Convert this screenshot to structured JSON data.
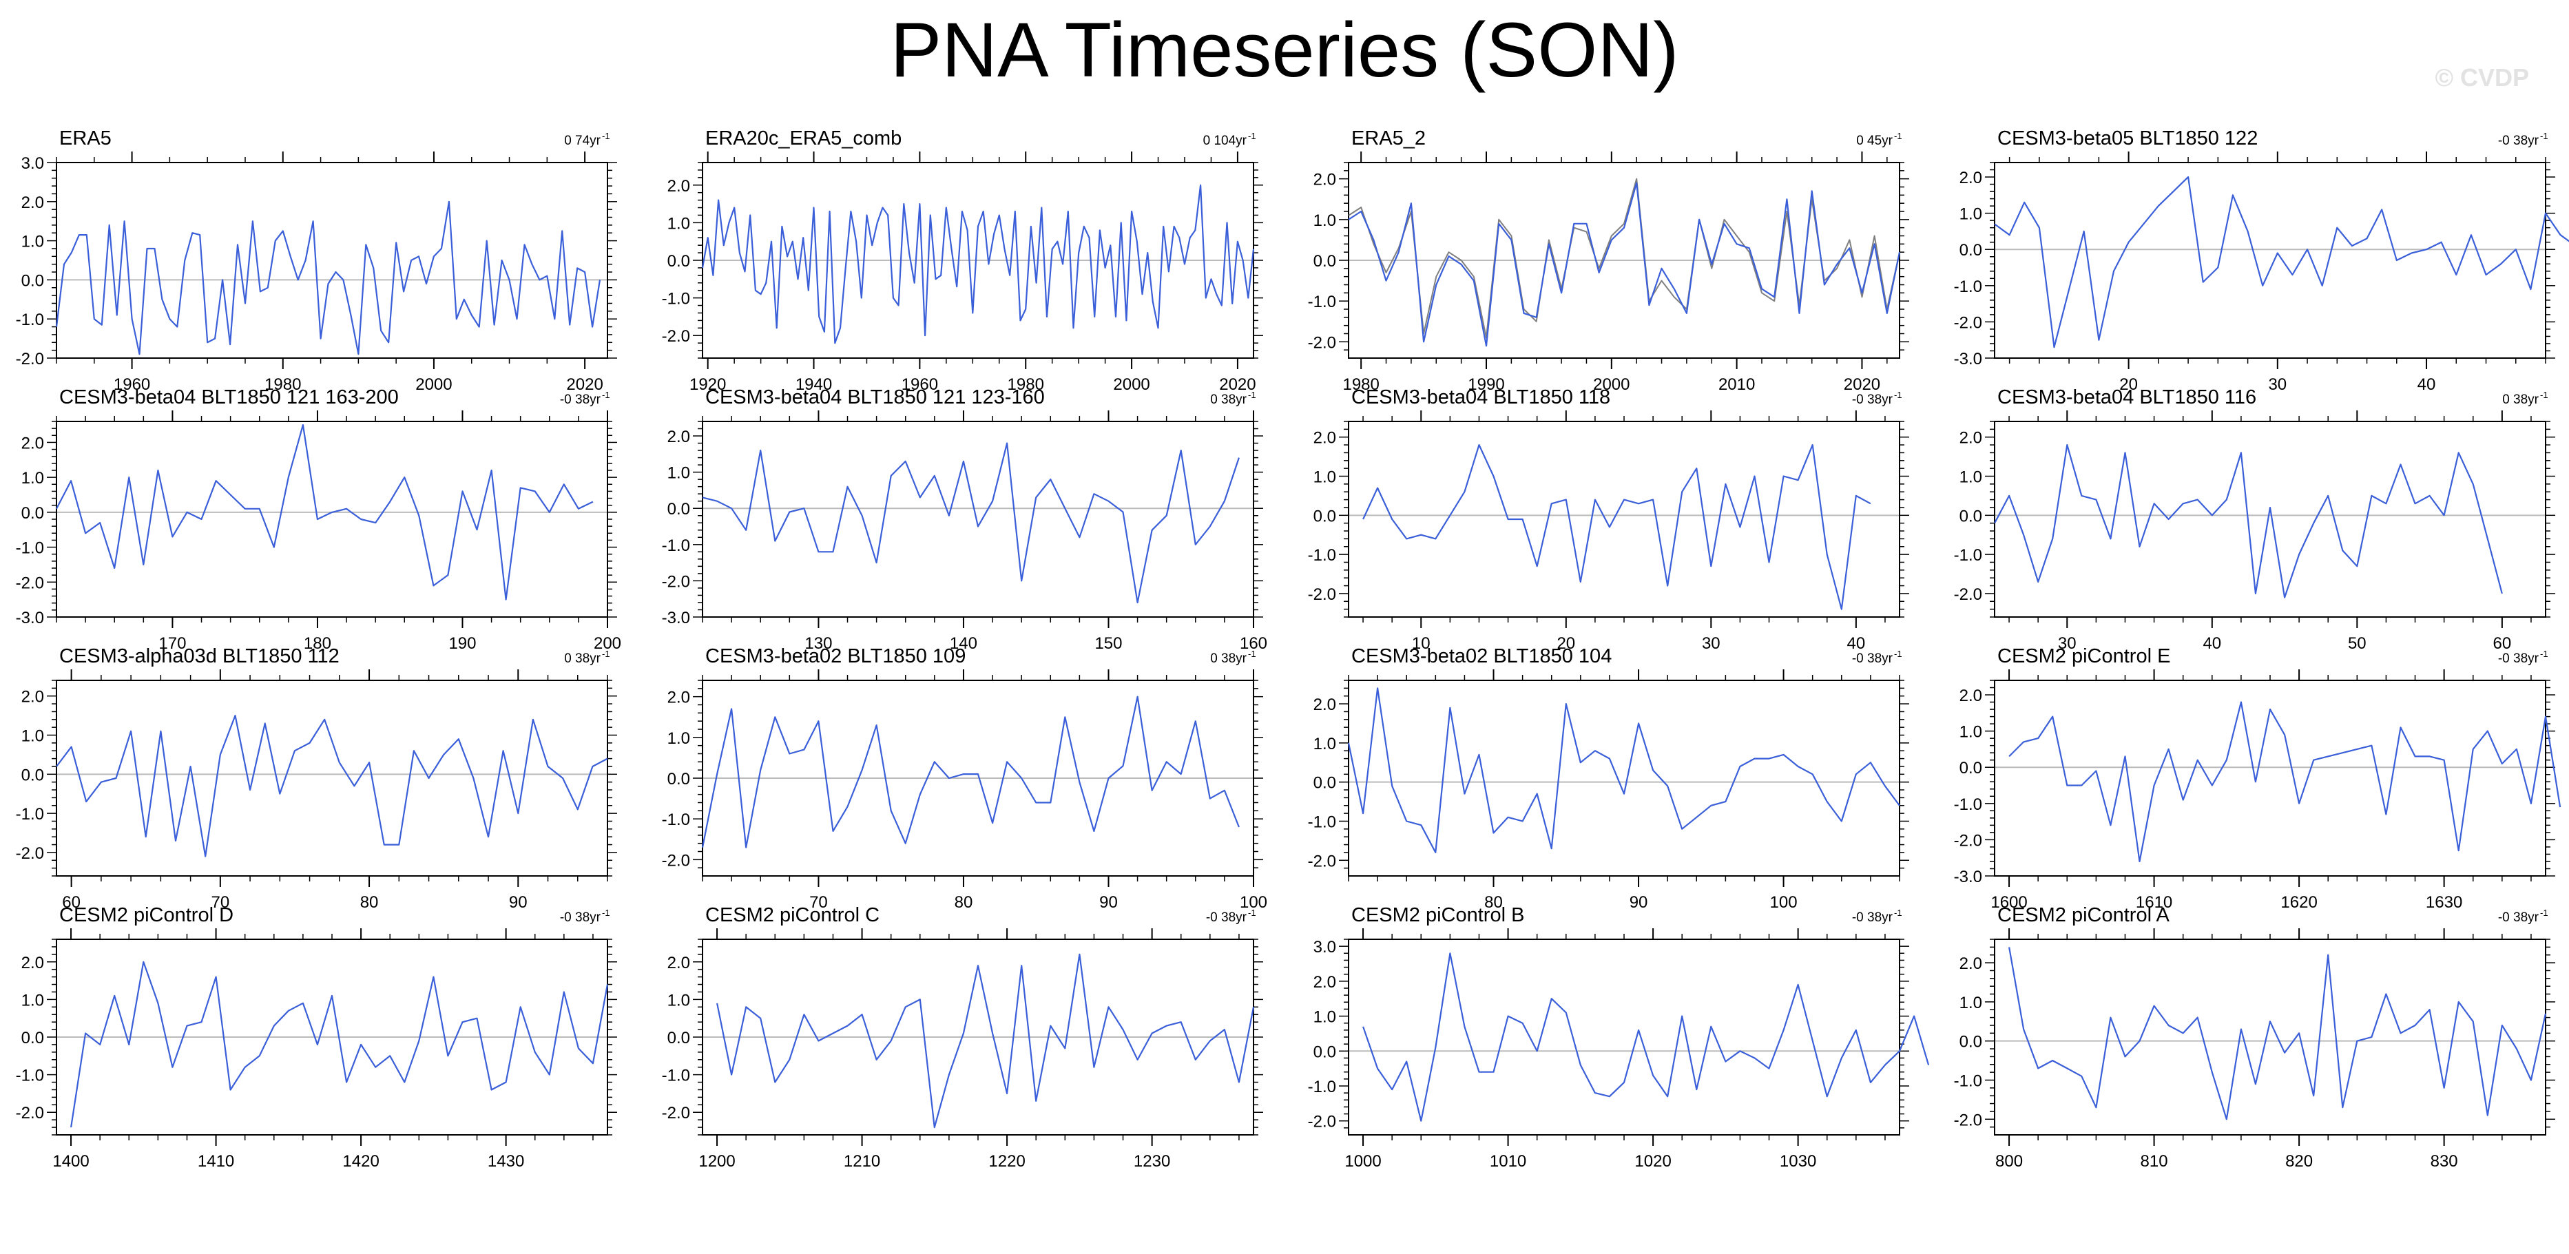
{
  "title": "PNA Timeseries (SON)",
  "watermark": "© CVDP",
  "colors": {
    "model": "#3a5fd9",
    "obs_overlay": "#7f7f7f",
    "axis": "#000000",
    "zero_line": "#bbbbbb"
  },
  "chart_data": [
    {
      "type": "line",
      "title": "ERA5",
      "trend": "0 74yr",
      "xlim": [
        1950,
        2023
      ],
      "ylim": [
        -2,
        3
      ],
      "xticks": [
        1960,
        1980,
        2000,
        2020
      ],
      "yticks": [
        "-2.0",
        "-1.0",
        "0.0",
        "1.0",
        "2.0",
        "3.0"
      ],
      "x_start": 1950,
      "values": [
        -1.2,
        0.4,
        0.7,
        1.15,
        1.15,
        -1.0,
        -1.15,
        1.4,
        -0.9,
        1.5,
        -1.0,
        -1.9,
        0.8,
        0.8,
        -0.5,
        -1.0,
        -1.2,
        0.5,
        1.2,
        1.15,
        -1.6,
        -1.5,
        0.0,
        -1.65,
        0.9,
        -0.6,
        1.5,
        -0.3,
        -0.2,
        1.0,
        1.25,
        0.6,
        0.0,
        0.5,
        1.5,
        -1.5,
        -0.1,
        0.2,
        0.0,
        -0.9,
        -1.9,
        0.9,
        0.3,
        -1.3,
        -1.6,
        0.95,
        -0.3,
        0.5,
        0.6,
        -0.1,
        0.6,
        0.8,
        2.0,
        -1.0,
        -0.5,
        -0.9,
        -1.2,
        1.0,
        -1.15,
        0.5,
        0.0,
        -1.0,
        0.9,
        0.4,
        0.0,
        0.1,
        -1.0,
        1.25,
        -1.15,
        0.3,
        0.2,
        -1.2,
        0.0
      ]
    },
    {
      "type": "line",
      "title": "ERA20c_ERA5_comb",
      "trend": "0 104yr",
      "xlim": [
        1919,
        2023
      ],
      "ylim": [
        -2.6,
        2.6
      ],
      "xticks": [
        1920,
        1940,
        1960,
        1980,
        2000,
        2020
      ],
      "yticks": [
        "-2.0",
        "-1.0",
        "0.0",
        "1.0",
        "2.0"
      ],
      "x_start": 1919,
      "values": [
        -0.2,
        0.6,
        -0.4,
        1.6,
        0.4,
        1.0,
        1.4,
        0.2,
        -0.3,
        1.2,
        -0.8,
        -0.9,
        -0.6,
        0.5,
        -1.8,
        0.9,
        0.1,
        0.5,
        -0.5,
        0.6,
        -0.8,
        1.4,
        -1.5,
        -1.9,
        1.3,
        -2.2,
        -1.8,
        -0.2,
        1.3,
        0.5,
        -1.0,
        1.2,
        0.4,
        1.0,
        1.4,
        1.2,
        -1.0,
        -1.2,
        1.5,
        0.2,
        -0.6,
        1.5,
        -2.0,
        1.2,
        -0.5,
        -0.4,
        1.4,
        0.3,
        -0.7,
        1.3,
        0.8,
        -1.4,
        0.9,
        1.3,
        -0.1,
        0.7,
        1.2,
        0.3,
        -0.4,
        1.3,
        -1.6,
        -1.3,
        0.9,
        -0.6,
        1.4,
        -1.5,
        0.3,
        0.5,
        -0.1,
        1.3,
        -1.8,
        0.2,
        0.9,
        0.6,
        -1.5,
        0.8,
        -0.2,
        0.4,
        -1.5,
        1.0,
        -1.6,
        1.3,
        0.5,
        -0.9,
        0.2,
        -1.1,
        -1.8,
        0.9,
        -0.3,
        0.9,
        0.6,
        -0.1,
        0.6,
        0.8,
        2.0,
        -1.0,
        -0.5,
        -0.9,
        -1.2,
        1.0,
        -1.15,
        0.5,
        0.0,
        -1.0,
        0.3
      ]
    },
    {
      "type": "line",
      "title": "ERA5_2",
      "trend": "0 45yr",
      "xlim": [
        1979,
        2023
      ],
      "ylim": [
        -2.4,
        2.4
      ],
      "xticks": [
        1980,
        1990,
        2000,
        2010,
        2020
      ],
      "yticks": [
        "-2.0",
        "-1.0",
        "0.0",
        "1.0",
        "2.0"
      ],
      "x_start": 1979,
      "values": [
        1.0,
        1.2,
        0.5,
        -0.5,
        0.2,
        1.4,
        -2.0,
        -0.6,
        0.1,
        -0.1,
        -0.5,
        -2.1,
        0.9,
        0.5,
        -1.3,
        -1.4,
        0.4,
        -0.8,
        0.9,
        0.9,
        -0.3,
        0.5,
        0.8,
        1.9,
        -1.1,
        -0.2,
        -0.7,
        -1.3,
        1.0,
        -0.1,
        0.9,
        0.4,
        0.3,
        -0.7,
        -0.9,
        1.5,
        -1.3,
        1.7,
        -0.6,
        -0.1,
        0.3,
        -0.8,
        0.4,
        -1.3,
        0.2
      ],
      "overlay": [
        1.1,
        1.3,
        0.4,
        -0.3,
        0.3,
        1.2,
        -1.8,
        -0.4,
        0.2,
        0.0,
        -0.4,
        -1.9,
        1.0,
        0.6,
        -1.2,
        -1.5,
        0.5,
        -0.7,
        0.8,
        0.7,
        -0.2,
        0.6,
        0.9,
        2.0,
        -1.0,
        -0.5,
        -0.9,
        -1.2,
        1.0,
        -0.2,
        1.0,
        0.6,
        0.2,
        -0.8,
        -1.0,
        1.2,
        -1.1,
        1.5,
        -0.5,
        -0.2,
        0.5,
        -0.9,
        0.6,
        -1.2,
        0.2
      ]
    },
    {
      "type": "line",
      "title": "CESM3-beta05 BLT1850 122",
      "trend": "-0 38yr",
      "xlim": [
        11,
        48
      ],
      "ylim": [
        -3,
        2.4
      ],
      "xticks": [
        20,
        30,
        40
      ],
      "yticks": [
        "-3.0",
        "-2.0",
        "-1.0",
        "0.0",
        "1.0",
        "2.0"
      ],
      "x_start": 11,
      "values": [
        0.7,
        0.4,
        1.3,
        0.6,
        -2.7,
        -1.1,
        0.5,
        -2.5,
        -0.6,
        0.2,
        0.7,
        1.2,
        1.6,
        2.0,
        -0.9,
        -0.5,
        1.5,
        0.5,
        -1.0,
        -0.1,
        -0.7,
        0.0,
        -1.0,
        0.6,
        0.1,
        0.3,
        1.1,
        -0.3,
        -0.1,
        0.0,
        0.2,
        -0.7,
        0.4,
        -0.7,
        -0.4,
        0.0,
        -1.1,
        1.0,
        0.4,
        0.1
      ]
    },
    {
      "type": "line",
      "title": "CESM3-beta04 BLT1850 121 163-200",
      "trend": "-0 38yr",
      "xlim": [
        162,
        200
      ],
      "ylim": [
        -3,
        2.6
      ],
      "xticks": [
        170,
        180,
        190,
        200
      ],
      "yticks": [
        "-3.0",
        "-2.0",
        "-1.0",
        "0.0",
        "1.0",
        "2.0"
      ],
      "x_start": 162,
      "values": [
        0.1,
        0.9,
        -0.6,
        -0.3,
        -1.6,
        1.0,
        -1.5,
        1.2,
        -0.7,
        0.0,
        -0.2,
        0.9,
        0.5,
        0.1,
        0.1,
        -1.0,
        1.0,
        2.5,
        -0.2,
        0.0,
        0.1,
        -0.2,
        -0.3,
        0.3,
        1.0,
        -0.1,
        -2.1,
        -1.8,
        0.6,
        -0.5,
        1.2,
        -2.5,
        0.7,
        0.6,
        0.0,
        0.8,
        0.1,
        0.3
      ]
    },
    {
      "type": "line",
      "title": "CESM3-beta04 BLT1850 121 123-160",
      "trend": "0 38yr",
      "xlim": [
        122,
        160
      ],
      "ylim": [
        -3,
        2.4
      ],
      "xticks": [
        130,
        140,
        150,
        160
      ],
      "yticks": [
        "-3.0",
        "-2.0",
        "-1.0",
        "0.0",
        "1.0",
        "2.0"
      ],
      "x_start": 122,
      "values": [
        0.3,
        0.2,
        0.0,
        -0.6,
        1.6,
        -0.9,
        -0.1,
        0.0,
        -1.2,
        -1.2,
        0.6,
        -0.2,
        -1.5,
        0.9,
        1.3,
        0.3,
        0.9,
        -0.2,
        1.3,
        -0.5,
        0.2,
        1.8,
        -2.0,
        0.3,
        0.8,
        0.0,
        -0.8,
        0.4,
        0.2,
        -0.1,
        -2.6,
        -0.6,
        -0.2,
        1.6,
        -1.0,
        -0.5,
        0.2,
        1.4
      ]
    },
    {
      "type": "line",
      "title": "CESM3-beta04 BLT1850 118",
      "trend": "-0 38yr",
      "xlim": [
        5,
        43
      ],
      "ylim": [
        -2.6,
        2.4
      ],
      "xticks": [
        10,
        20,
        30,
        40
      ],
      "yticks": [
        "-2.0",
        "-1.0",
        "0.0",
        "1.0",
        "2.0"
      ],
      "x_start": 6,
      "values": [
        -0.1,
        0.7,
        -0.1,
        -0.6,
        -0.5,
        -0.6,
        0.0,
        0.6,
        1.8,
        1.0,
        -0.1,
        -0.1,
        -1.3,
        0.3,
        0.4,
        -1.7,
        0.4,
        -0.3,
        0.4,
        0.3,
        0.4,
        -1.8,
        0.6,
        1.2,
        -1.3,
        0.8,
        -0.3,
        1.0,
        -1.2,
        1.0,
        0.9,
        1.8,
        -1.0,
        -2.4,
        0.5,
        0.3
      ]
    },
    {
      "type": "line",
      "title": "CESM3-beta04 BLT1850 116",
      "trend": "0 38yr",
      "xlim": [
        25,
        63
      ],
      "ylim": [
        -2.6,
        2.4
      ],
      "xticks": [
        30,
        40,
        50,
        60
      ],
      "yticks": [
        "-2.0",
        "-1.0",
        "0.0",
        "1.0",
        "2.0"
      ],
      "x_start": 25,
      "values": [
        -0.2,
        0.5,
        -0.5,
        -1.7,
        -0.6,
        1.8,
        0.5,
        0.4,
        -0.6,
        1.6,
        -0.8,
        0.3,
        -0.1,
        0.3,
        0.4,
        0.0,
        0.4,
        1.6,
        -2.0,
        0.2,
        -2.1,
        -1.0,
        -0.2,
        0.5,
        -0.9,
        -1.3,
        0.5,
        0.3,
        1.3,
        0.3,
        0.5,
        0.0,
        1.6,
        0.8,
        -0.6,
        -2.0
      ]
    },
    {
      "type": "line",
      "title": "CESM3-alpha03d BLT1850 112",
      "trend": "0 38yr",
      "xlim": [
        59,
        96
      ],
      "ylim": [
        -2.6,
        2.4
      ],
      "xticks": [
        60,
        70,
        80,
        90
      ],
      "yticks": [
        "-2.0",
        "-1.0",
        "0.0",
        "1.0",
        "2.0"
      ],
      "x_start": 59,
      "values": [
        0.2,
        0.7,
        -0.7,
        -0.2,
        -0.1,
        1.1,
        -1.6,
        1.1,
        -1.7,
        0.2,
        -2.1,
        0.5,
        1.5,
        -0.4,
        1.3,
        -0.5,
        0.6,
        0.8,
        1.4,
        0.3,
        -0.3,
        0.3,
        -1.8,
        -1.8,
        0.6,
        -0.1,
        0.5,
        0.9,
        -0.1,
        -1.6,
        0.6,
        -1.0,
        1.4,
        0.2,
        -0.1,
        -0.9,
        0.2,
        0.4
      ]
    },
    {
      "type": "line",
      "title": "CESM3-beta02 BLT1850 109",
      "trend": "0 38yr",
      "xlim": [
        62,
        100
      ],
      "ylim": [
        -2.4,
        2.4
      ],
      "xticks": [
        70,
        80,
        90,
        100
      ],
      "yticks": [
        "-2.0",
        "-1.0",
        "0.0",
        "1.0",
        "2.0"
      ],
      "x_start": 62,
      "values": [
        -1.7,
        0.1,
        1.7,
        -1.7,
        0.2,
        1.5,
        0.6,
        0.7,
        1.4,
        -1.3,
        -0.7,
        0.2,
        1.3,
        -0.8,
        -1.6,
        -0.4,
        0.4,
        0.0,
        0.1,
        0.1,
        -1.1,
        0.4,
        0.0,
        -0.6,
        -0.6,
        1.5,
        -0.1,
        -1.3,
        0.0,
        0.3,
        2.0,
        -0.3,
        0.4,
        0.1,
        1.4,
        -0.5,
        -0.3,
        -1.2
      ]
    },
    {
      "type": "line",
      "title": "CESM3-beta02 BLT1850 104",
      "trend": "-0 38yr",
      "xlim": [
        70,
        108
      ],
      "ylim": [
        -2.4,
        2.6
      ],
      "xticks": [
        80,
        90,
        100
      ],
      "yticks": [
        "-2.0",
        "-1.0",
        "0.0",
        "1.0",
        "2.0"
      ],
      "x_start": 70,
      "values": [
        1.0,
        -0.8,
        2.4,
        -0.1,
        -1.0,
        -1.1,
        -1.8,
        1.9,
        -0.3,
        0.7,
        -1.3,
        -0.9,
        -1.0,
        -0.3,
        -1.7,
        2.0,
        0.5,
        0.8,
        0.6,
        -0.3,
        1.5,
        0.3,
        -0.1,
        -1.2,
        -0.9,
        -0.6,
        -0.5,
        0.4,
        0.6,
        0.6,
        0.7,
        0.4,
        0.2,
        -0.5,
        -1.0,
        0.2,
        0.5,
        -0.1,
        -0.6
      ]
    },
    {
      "type": "line",
      "title": "CESM2 piControl E",
      "trend": "-0 38yr",
      "xlim": [
        1599,
        1637
      ],
      "ylim": [
        -3,
        2.4
      ],
      "xticks": [
        1600,
        1610,
        1620,
        1630
      ],
      "yticks": [
        "-3.0",
        "-2.0",
        "-1.0",
        "0.0",
        "1.0",
        "2.0"
      ],
      "x_start": 1600,
      "values": [
        0.3,
        0.7,
        0.8,
        1.4,
        -0.5,
        -0.5,
        -0.1,
        -1.6,
        0.3,
        -2.6,
        -0.5,
        0.5,
        -0.9,
        0.2,
        -0.5,
        0.2,
        1.8,
        -0.4,
        1.6,
        0.9,
        -1.0,
        0.2,
        0.3,
        0.4,
        0.5,
        0.6,
        -1.3,
        1.1,
        0.3,
        0.3,
        0.2,
        -2.3,
        0.5,
        1.0,
        0.1,
        0.5,
        -1.0,
        1.4,
        -1.1
      ]
    },
    {
      "type": "line",
      "title": "CESM2 piControl D",
      "trend": "-0 38yr",
      "xlim": [
        1399,
        1437
      ],
      "ylim": [
        -2.6,
        2.6
      ],
      "xticks": [
        1400,
        1410,
        1420,
        1430
      ],
      "yticks": [
        "-2.0",
        "-1.0",
        "0.0",
        "1.0",
        "2.0"
      ],
      "x_start": 1400,
      "values": [
        -2.4,
        0.1,
        -0.2,
        1.1,
        -0.2,
        2.0,
        0.9,
        -0.8,
        0.3,
        0.4,
        1.6,
        -1.4,
        -0.8,
        -0.5,
        0.3,
        0.7,
        0.9,
        -0.2,
        1.1,
        -1.2,
        -0.2,
        -0.8,
        -0.5,
        -1.2,
        -0.1,
        1.6,
        -0.5,
        0.4,
        0.5,
        -1.4,
        -1.2,
        0.8,
        -0.4,
        -1.0,
        1.2,
        -0.3,
        -0.7,
        1.4
      ]
    },
    {
      "type": "line",
      "title": "CESM2 piControl C",
      "trend": "-0 38yr",
      "xlim": [
        1199,
        1237
      ],
      "ylim": [
        -2.6,
        2.6
      ],
      "xticks": [
        1200,
        1210,
        1220,
        1230
      ],
      "yticks": [
        "-2.0",
        "-1.0",
        "0.0",
        "1.0",
        "2.0"
      ],
      "x_start": 1200,
      "values": [
        0.9,
        -1.0,
        0.8,
        0.5,
        -1.2,
        -0.6,
        0.6,
        -0.1,
        0.1,
        0.3,
        0.6,
        -0.6,
        -0.1,
        0.8,
        1.0,
        -2.4,
        -1.0,
        0.1,
        1.9,
        0.1,
        -1.5,
        1.9,
        -1.7,
        0.3,
        -0.3,
        2.2,
        -0.8,
        0.8,
        0.2,
        -0.6,
        0.1,
        0.3,
        0.4,
        -0.6,
        -0.1,
        0.2,
        -1.2,
        0.8
      ]
    },
    {
      "type": "line",
      "title": "CESM2 piControl B",
      "trend": "-0 38yr",
      "xlim": [
        999,
        1037
      ],
      "ylim": [
        -2.4,
        3.2
      ],
      "xticks": [
        1000,
        1010,
        1020,
        1030
      ],
      "yticks": [
        "-2.0",
        "-1.0",
        "0.0",
        "1.0",
        "2.0",
        "3.0"
      ],
      "x_start": 1000,
      "values": [
        0.7,
        -0.5,
        -1.1,
        -0.3,
        -2.0,
        0.1,
        2.8,
        0.7,
        -0.6,
        -0.6,
        1.0,
        0.8,
        0.0,
        1.5,
        1.1,
        -0.4,
        -1.2,
        -1.3,
        -0.9,
        0.6,
        -0.7,
        -1.3,
        1.0,
        -1.1,
        0.7,
        -0.3,
        0.0,
        -0.2,
        -0.5,
        0.6,
        1.9,
        0.3,
        -1.3,
        -0.2,
        0.6,
        -0.9,
        -0.4,
        0.0,
        1.0,
        -0.4
      ]
    },
    {
      "type": "line",
      "title": "CESM2 piControl A",
      "trend": "-0 38yr",
      "xlim": [
        799,
        837
      ],
      "ylim": [
        -2.4,
        2.6
      ],
      "xticks": [
        800,
        810,
        820,
        830
      ],
      "yticks": [
        "-2.0",
        "-1.0",
        "0.0",
        "1.0",
        "2.0"
      ],
      "x_start": 800,
      "values": [
        2.4,
        0.3,
        -0.7,
        -0.5,
        -0.7,
        -0.9,
        -1.7,
        0.6,
        -0.4,
        0.0,
        0.9,
        0.4,
        0.2,
        0.6,
        -0.8,
        -2.0,
        0.3,
        -1.1,
        0.5,
        -0.3,
        0.2,
        -1.4,
        2.2,
        -1.7,
        0.0,
        0.1,
        1.2,
        0.2,
        0.4,
        0.8,
        -1.2,
        1.0,
        0.5,
        -1.9,
        0.4,
        -0.2,
        -1.0,
        0.7
      ]
    }
  ]
}
